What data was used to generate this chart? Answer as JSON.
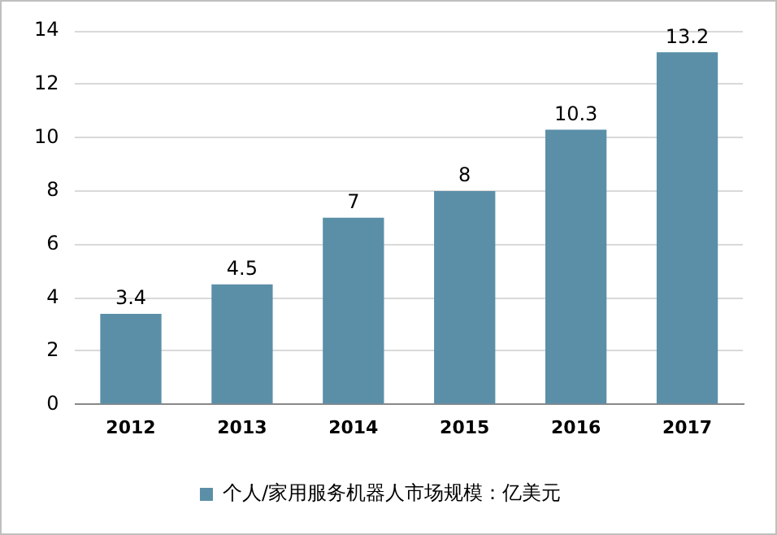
{
  "chart_data": {
    "type": "bar",
    "categories": [
      "2012",
      "2013",
      "2014",
      "2015",
      "2016",
      "2017"
    ],
    "series": [
      {
        "name": "个人/家用服务机器人市场规模：亿美元",
        "color": "#5b8fa8",
        "values": [
          3.4,
          4.5,
          7,
          8,
          10.3,
          13.2
        ]
      }
    ],
    "ylim": [
      0,
      14
    ],
    "yticks": [
      0,
      2,
      4,
      6,
      8,
      10,
      12,
      14
    ],
    "grid": "y",
    "legend": "bottom",
    "data_labels": true
  }
}
